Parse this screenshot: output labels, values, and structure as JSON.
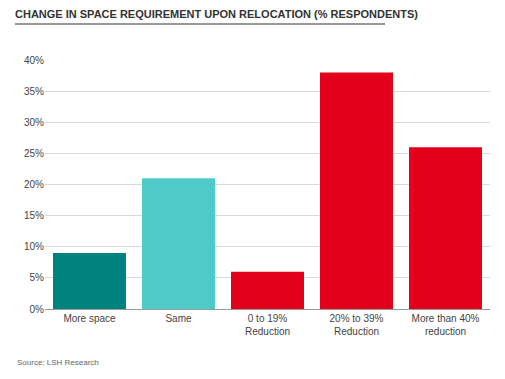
{
  "chart_data": {
    "type": "bar",
    "title": "CHANGE IN SPACE REQUIREMENT UPON RELOCATION (% RESPONDENTS)",
    "source": "Source: LSH Research",
    "categories": [
      "More space",
      "Same",
      "0 to 19% Reduction",
      "20% to 39% Reduction",
      "More than 40% reduction"
    ],
    "values": [
      9,
      21,
      6,
      38,
      26
    ],
    "colors": [
      "#00827f",
      "#4ecbc8",
      "#e2001a",
      "#e2001a",
      "#e2001a"
    ],
    "ylim": [
      0,
      40
    ],
    "yticks": [
      {
        "value": 0,
        "label": "0%"
      },
      {
        "value": 5,
        "label": "5%"
      },
      {
        "value": 10,
        "label": "10%"
      },
      {
        "value": 15,
        "label": "15%"
      },
      {
        "value": 20,
        "label": "20%"
      },
      {
        "value": 25,
        "label": "25%"
      },
      {
        "value": 30,
        "label": "30%"
      },
      {
        "value": 35,
        "label": "35%"
      },
      {
        "value": 40,
        "label": "40%"
      }
    ],
    "grid": true
  }
}
